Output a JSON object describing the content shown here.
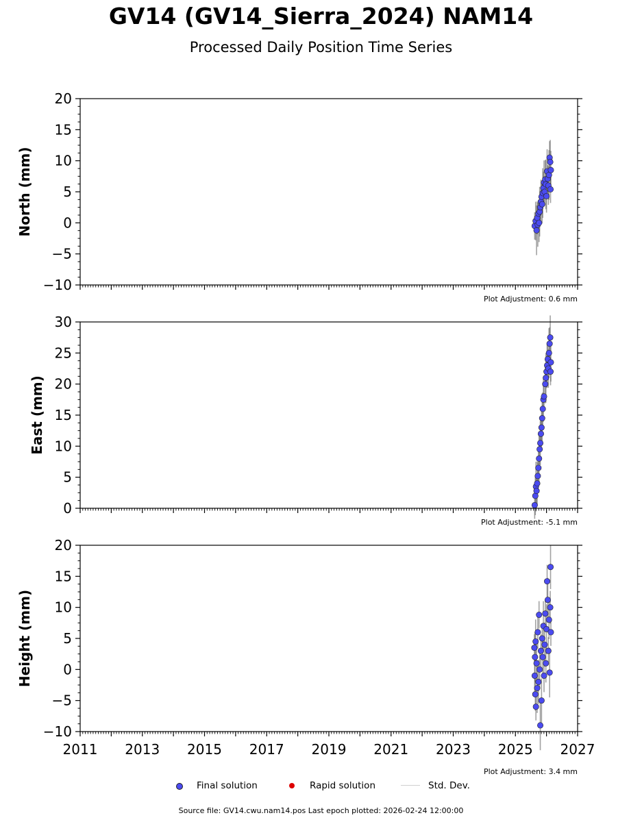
{
  "title": "GV14 (GV14_Sierra_2024) NAM14",
  "subtitle": "Processed Daily Position Time Series",
  "colors": {
    "final": "#4b4bf0",
    "rapid": "#dd0000",
    "stddev": "#cccccc"
  },
  "legend": {
    "final": "Final solution",
    "rapid": "Rapid solution",
    "stddev": "Std. Dev."
  },
  "source": "Source file: GV14.cwu.nam14.pos  Last epoch plotted: 2026-02-24 12:00:00",
  "chart_data": [
    {
      "type": "scatter",
      "ylabel": "North (mm)",
      "adjustment": "Plot Adjustment: 0.6 mm",
      "xlim": [
        2011,
        2027
      ],
      "ylim": [
        -10,
        20
      ],
      "yticks": [
        -10,
        -5,
        0,
        5,
        10,
        15,
        20
      ],
      "grid": false,
      "points": [
        [
          2025.62,
          -0.5
        ],
        [
          2025.65,
          0.3
        ],
        [
          2025.68,
          -1.2
        ],
        [
          2025.7,
          0.8
        ],
        [
          2025.72,
          -0.3
        ],
        [
          2025.74,
          1.5
        ],
        [
          2025.76,
          0.0
        ],
        [
          2025.78,
          1.8
        ],
        [
          2025.8,
          2.5
        ],
        [
          2025.82,
          3.4
        ],
        [
          2025.84,
          4.2
        ],
        [
          2025.86,
          3.0
        ],
        [
          2025.88,
          4.8
        ],
        [
          2025.9,
          5.6
        ],
        [
          2025.92,
          6.5
        ],
        [
          2025.94,
          5.0
        ],
        [
          2025.96,
          7.0
        ],
        [
          2025.98,
          6.2
        ],
        [
          2026.0,
          4.3
        ],
        [
          2026.02,
          8.3
        ],
        [
          2026.04,
          7.1
        ],
        [
          2026.06,
          6.0
        ],
        [
          2026.08,
          7.7
        ],
        [
          2026.1,
          10.5
        ],
        [
          2026.12,
          9.8
        ],
        [
          2026.13,
          5.4
        ],
        [
          2026.14,
          8.5
        ]
      ]
    },
    {
      "type": "scatter",
      "ylabel": "East (mm)",
      "adjustment": "Plot Adjustment: -5.1 mm",
      "xlim": [
        2011,
        2027
      ],
      "ylim": [
        0,
        30
      ],
      "yticks": [
        0,
        5,
        10,
        15,
        20,
        25,
        30
      ],
      "grid": false,
      "points": [
        [
          2025.62,
          0.5
        ],
        [
          2025.64,
          2.0
        ],
        [
          2025.66,
          3.5
        ],
        [
          2025.68,
          2.8
        ],
        [
          2025.7,
          4.0
        ],
        [
          2025.72,
          5.2
        ],
        [
          2025.74,
          6.5
        ],
        [
          2025.76,
          8.0
        ],
        [
          2025.78,
          9.5
        ],
        [
          2025.8,
          10.5
        ],
        [
          2025.82,
          12.0
        ],
        [
          2025.84,
          13.0
        ],
        [
          2025.86,
          14.5
        ],
        [
          2025.88,
          16.0
        ],
        [
          2025.9,
          17.5
        ],
        [
          2025.92,
          18.0
        ],
        [
          2025.96,
          20.0
        ],
        [
          2025.98,
          21.0
        ],
        [
          2026.0,
          22.0
        ],
        [
          2026.02,
          23.0
        ],
        [
          2026.04,
          24.0
        ],
        [
          2026.06,
          22.5
        ],
        [
          2026.08,
          25.0
        ],
        [
          2026.1,
          26.5
        ],
        [
          2026.12,
          27.5
        ],
        [
          2026.13,
          22.0
        ],
        [
          2026.14,
          23.5
        ]
      ]
    },
    {
      "type": "scatter",
      "ylabel": "Height (mm)",
      "adjustment": "Plot Adjustment: 3.4 mm",
      "xlim": [
        2011,
        2027
      ],
      "ylim": [
        -10,
        20
      ],
      "yticks": [
        -10,
        -5,
        0,
        5,
        10,
        15,
        20
      ],
      "xticks": [
        2011,
        2013,
        2015,
        2017,
        2019,
        2021,
        2023,
        2025,
        2027
      ],
      "grid": false,
      "points": [
        [
          2025.61,
          3.5
        ],
        [
          2025.62,
          -1.0
        ],
        [
          2025.63,
          2.0
        ],
        [
          2025.64,
          -4.0
        ],
        [
          2025.65,
          4.5
        ],
        [
          2025.66,
          -6.0
        ],
        [
          2025.68,
          1.0
        ],
        [
          2025.7,
          -3.0
        ],
        [
          2025.72,
          6.0
        ],
        [
          2025.74,
          -2.0
        ],
        [
          2025.76,
          8.8
        ],
        [
          2025.78,
          0.0
        ],
        [
          2025.8,
          -9.0
        ],
        [
          2025.82,
          3.0
        ],
        [
          2025.84,
          -5.0
        ],
        [
          2025.86,
          5.0
        ],
        [
          2025.88,
          2.0
        ],
        [
          2025.9,
          7.0
        ],
        [
          2025.92,
          -1.0
        ],
        [
          2025.94,
          4.0
        ],
        [
          2025.96,
          9.0
        ],
        [
          2025.98,
          1.0
        ],
        [
          2026.0,
          6.5
        ],
        [
          2026.02,
          14.2
        ],
        [
          2026.04,
          11.2
        ],
        [
          2026.06,
          3.0
        ],
        [
          2026.08,
          8.0
        ],
        [
          2026.1,
          -0.5
        ],
        [
          2026.12,
          10.0
        ],
        [
          2026.13,
          16.5
        ],
        [
          2026.14,
          6.0
        ]
      ]
    }
  ]
}
